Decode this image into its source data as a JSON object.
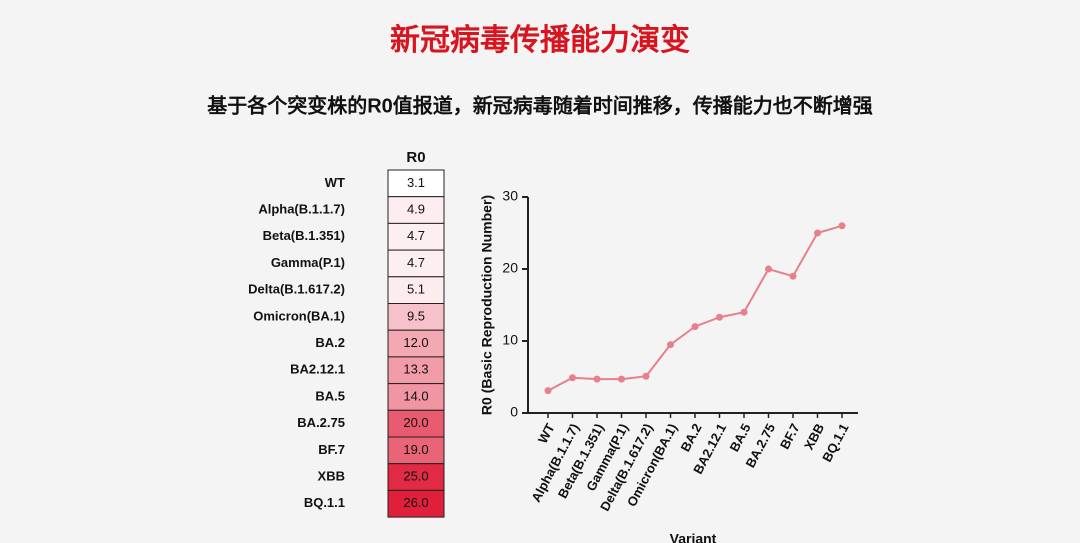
{
  "title": "新冠病毒传播能力演变",
  "subtitle": "基于各个突变株的R0值报道，新冠病毒随着时间推移，传播能力也不断增强",
  "chart_data": [
    {
      "type": "heatmap",
      "column_label": "R0",
      "color": "#e0203a",
      "categories": [
        "WT",
        "Alpha(B.1.1.7)",
        "Beta(B.1.351)",
        "Gamma(P.1)",
        "Delta(B.1.617.2)",
        "Omicron(BA.1)",
        "BA.2",
        "BA2.12.1",
        "BA.5",
        "BA.2.75",
        "BF.7",
        "XBB",
        "BQ.1.1"
      ],
      "values": [
        3.1,
        4.9,
        4.7,
        4.7,
        5.1,
        9.5,
        12.0,
        13.3,
        14.0,
        20.0,
        19.0,
        25.0,
        26.0
      ],
      "value_labels": [
        "3.1",
        "4.9",
        "4.7",
        "4.7",
        "5.1",
        "9.5",
        "12.0",
        "13.3",
        "14.0",
        "20.0",
        "19.0",
        "25.0",
        "26.0"
      ]
    },
    {
      "type": "line",
      "ylabel": "R0 (Basic Reproduction Number)",
      "xlabel": "Variant",
      "color": "#e8808c",
      "categories": [
        "WT",
        "Alpha(B.1.1.7)",
        "Beta(B.1.351)",
        "Gamma(P.1)",
        "Delta(B.1.617.2)",
        "Omicron(BA.1)",
        "BA.2",
        "BA2.12.1",
        "BA.5",
        "BA.2.75",
        "BF.7",
        "XBB",
        "BQ.1.1"
      ],
      "values": [
        3.1,
        4.9,
        4.7,
        4.7,
        5.1,
        9.5,
        12.0,
        13.3,
        14.0,
        20.0,
        19.0,
        25.0,
        26.0
      ],
      "ylim": [
        0,
        30
      ],
      "yticks": [
        0,
        10,
        20,
        30
      ]
    }
  ]
}
